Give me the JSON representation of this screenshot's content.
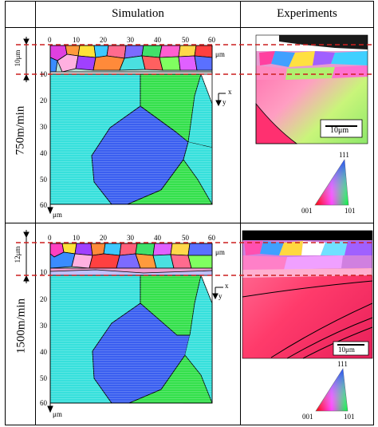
{
  "header": {
    "simulation_label": "Simulation",
    "experiments_label": "Experiments"
  },
  "rows": [
    {
      "speed_label": "750m/min",
      "thickness_label": "10μm",
      "x_ticks": [
        "0",
        "10",
        "20",
        "30",
        "40",
        "50",
        "60"
      ],
      "y_ticks": [
        "10",
        "20",
        "30",
        "40",
        "50",
        "60"
      ],
      "x_unit": "μm",
      "y_unit": "μm",
      "axis_x": "x",
      "axis_y": "y",
      "scale_bar_label": "10μm"
    },
    {
      "speed_label": "1500m/min",
      "thickness_label": "12μm",
      "x_ticks": [
        "0",
        "10",
        "20",
        "30",
        "40",
        "50",
        "60"
      ],
      "y_ticks": [
        "10",
        "20",
        "30",
        "40",
        "50",
        "60"
      ],
      "x_unit": "μm",
      "y_unit": "μm",
      "axis_x": "x",
      "axis_y": "y",
      "scale_bar_label": "10μm"
    }
  ],
  "ipf_legend": {
    "corner_top": "111",
    "corner_left": "001",
    "corner_right": "101"
  },
  "colors": {
    "grain_cyan": "#37e0dc",
    "grain_blue": "#3a5ff0",
    "grain_green": "#34e04c",
    "dashed_line": "#cc1f1f"
  }
}
